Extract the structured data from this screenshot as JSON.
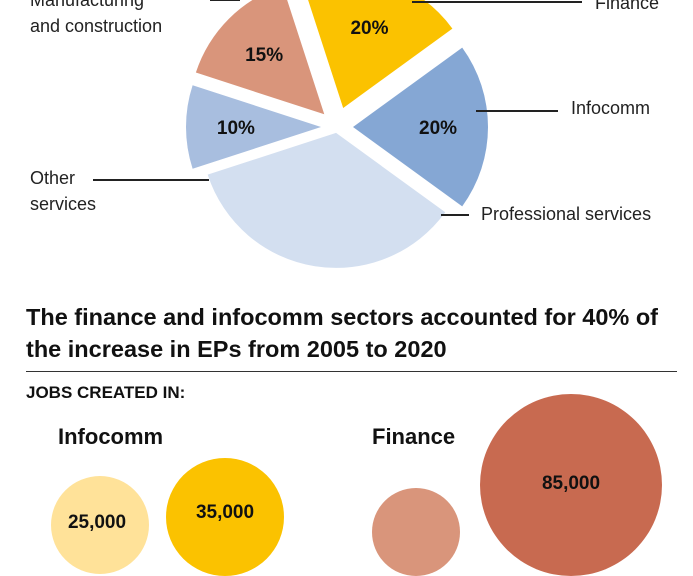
{
  "chart_data": [
    {
      "type": "pie",
      "title": "",
      "slices": [
        {
          "label": "Manufacturing and construction",
          "value": 10,
          "value_label": "10%",
          "color": "#a8bedf"
        },
        {
          "label": "Finance",
          "value": 15,
          "value_label": "15%",
          "color": "#d9957b"
        },
        {
          "label": "Infocomm",
          "value": 20,
          "value_label": "20%",
          "color": "#fbc200"
        },
        {
          "label": "Professional services",
          "value": 20,
          "value_label": "20%",
          "color": "#85a7d4"
        },
        {
          "label": "Other services",
          "value": 35,
          "value_label": "",
          "color": "#d3dff0"
        }
      ],
      "pie_labels": {
        "manufacturing": "Manufacturing\nand construction",
        "finance": "Finance",
        "infocomm": "Infocomm",
        "professional": "Professional services",
        "other": "Other\nservices"
      }
    },
    {
      "type": "bubble",
      "title": "The finance and infocomm sectors accounted for 40% of the increase in EPs from 2005 to 2020",
      "subtitle": "JOBS CREATED IN:",
      "groups": [
        {
          "name": "Infocomm",
          "bubbles": [
            {
              "value": 25000,
              "label": "25,000",
              "color": "#ffe299"
            },
            {
              "value": 35000,
              "label": "35,000",
              "color": "#fbc200"
            }
          ]
        },
        {
          "name": "Finance",
          "bubbles": [
            {
              "value": null,
              "label": "",
              "color": "#d9957b"
            },
            {
              "value": 85000,
              "label": "85,000",
              "color": "#c86a50"
            }
          ]
        }
      ]
    }
  ]
}
